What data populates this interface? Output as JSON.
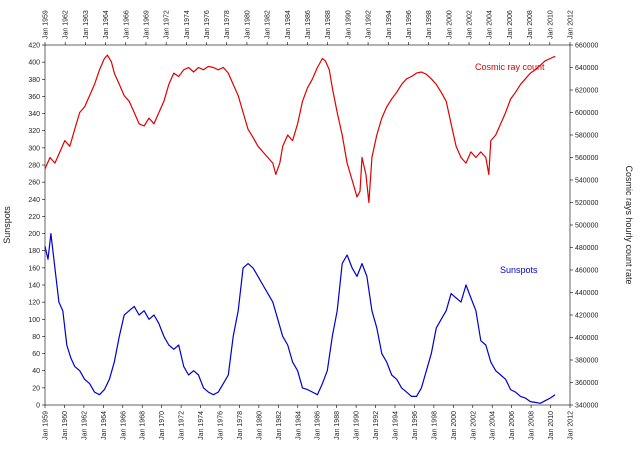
{
  "chart_data": {
    "type": "line",
    "title": "",
    "left_axis": {
      "label": "Sunspots",
      "range": [
        0,
        420
      ],
      "ticks": [
        "0",
        "20",
        "40",
        "60",
        "80",
        "100",
        "120",
        "140",
        "160",
        "180",
        "200",
        "220",
        "240",
        "260",
        "280",
        "300",
        "320",
        "340",
        "360",
        "380",
        "400",
        "420"
      ]
    },
    "right_axis": {
      "label": "Cosmic rays hourly count rate",
      "range": [
        340000,
        660000
      ],
      "ticks": [
        "340000",
        "360000",
        "380000",
        "400000",
        "420000",
        "440000",
        "460000",
        "480000",
        "500000",
        "520000",
        "540000",
        "560000",
        "580000",
        "600000",
        "620000",
        "640000",
        "660000"
      ]
    },
    "x_axis": {
      "range": [
        1959,
        2012
      ],
      "bottom_ticks": [
        "Jan 1959",
        "Jan 1960",
        "Jan 1962",
        "Jan 1964",
        "Jan 1966",
        "Jan 1968",
        "Jan 1970",
        "Jan 1972",
        "Jan 1974",
        "Jan 1976",
        "Jan 1978",
        "Jan 1980",
        "Jan 1982",
        "Jan 1984",
        "Jan 1986",
        "Jan 1988",
        "Jan 1990",
        "Jan 1992",
        "Jan 1994",
        "Jan 1996",
        "Jan 1998",
        "Jan 2000",
        "Jan 2002",
        "Jan 2004",
        "Jan 2006",
        "Jan 2008",
        "Jan 2010",
        "Jan 2012"
      ],
      "top_ticks": [
        "Jan 1959",
        "Jan 1962",
        "Jan 1963",
        "Jan 1964",
        "Jan 1966",
        "Jan 1969",
        "Jan 1972",
        "Jan 1974",
        "Jan 1976",
        "Jan 1978",
        "Jan 1980",
        "Jan 1982",
        "Jan 1984",
        "Jan 1986",
        "Jan 1988",
        "Jan 1990",
        "Jan 1992",
        "Jan 1994",
        "Jan 1996",
        "Jan 1998",
        "Jan 2000",
        "Jan 2002",
        "Jan 2004",
        "Jan 2006",
        "Jan 2008",
        "Jan 2010",
        "Jan 2012"
      ]
    },
    "series": [
      {
        "name": "Cosmic ray count",
        "axis": "right",
        "color": "#e00000",
        "points": [
          [
            1959.0,
            550000
          ],
          [
            1959.5,
            560000
          ],
          [
            1960.0,
            555000
          ],
          [
            1960.5,
            565000
          ],
          [
            1961.0,
            575000
          ],
          [
            1961.5,
            570000
          ],
          [
            1962.0,
            585000
          ],
          [
            1962.5,
            600000
          ],
          [
            1963.0,
            605000
          ],
          [
            1963.5,
            615000
          ],
          [
            1964.0,
            625000
          ],
          [
            1964.5,
            638000
          ],
          [
            1965.0,
            648000
          ],
          [
            1965.3,
            651000
          ],
          [
            1965.7,
            645000
          ],
          [
            1966.0,
            635000
          ],
          [
            1966.5,
            625000
          ],
          [
            1967.0,
            615000
          ],
          [
            1967.5,
            610000
          ],
          [
            1968.0,
            600000
          ],
          [
            1968.5,
            590000
          ],
          [
            1969.0,
            588000
          ],
          [
            1969.5,
            595000
          ],
          [
            1970.0,
            590000
          ],
          [
            1970.5,
            600000
          ],
          [
            1971.0,
            610000
          ],
          [
            1971.5,
            625000
          ],
          [
            1972.0,
            635000
          ],
          [
            1972.5,
            632000
          ],
          [
            1973.0,
            638000
          ],
          [
            1973.5,
            640000
          ],
          [
            1974.0,
            636000
          ],
          [
            1974.5,
            640000
          ],
          [
            1975.0,
            638000
          ],
          [
            1975.5,
            641000
          ],
          [
            1976.0,
            640000
          ],
          [
            1976.5,
            638000
          ],
          [
            1977.0,
            640000
          ],
          [
            1977.5,
            635000
          ],
          [
            1978.0,
            625000
          ],
          [
            1978.5,
            615000
          ],
          [
            1979.0,
            600000
          ],
          [
            1979.5,
            585000
          ],
          [
            1980.0,
            578000
          ],
          [
            1980.5,
            570000
          ],
          [
            1981.0,
            565000
          ],
          [
            1981.5,
            560000
          ],
          [
            1982.0,
            555000
          ],
          [
            1982.3,
            545000
          ],
          [
            1982.7,
            555000
          ],
          [
            1983.0,
            570000
          ],
          [
            1983.5,
            580000
          ],
          [
            1984.0,
            575000
          ],
          [
            1984.5,
            590000
          ],
          [
            1985.0,
            610000
          ],
          [
            1985.5,
            622000
          ],
          [
            1986.0,
            630000
          ],
          [
            1986.5,
            640000
          ],
          [
            1987.0,
            648000
          ],
          [
            1987.3,
            646000
          ],
          [
            1987.7,
            638000
          ],
          [
            1988.0,
            622000
          ],
          [
            1988.5,
            600000
          ],
          [
            1989.0,
            580000
          ],
          [
            1989.5,
            555000
          ],
          [
            1990.0,
            540000
          ],
          [
            1990.5,
            525000
          ],
          [
            1990.8,
            530000
          ],
          [
            1991.0,
            560000
          ],
          [
            1991.4,
            545000
          ],
          [
            1991.7,
            520000
          ],
          [
            1992.0,
            560000
          ],
          [
            1992.5,
            580000
          ],
          [
            1993.0,
            595000
          ],
          [
            1993.5,
            605000
          ],
          [
            1994.0,
            612000
          ],
          [
            1994.5,
            618000
          ],
          [
            1995.0,
            625000
          ],
          [
            1995.5,
            630000
          ],
          [
            1996.0,
            632000
          ],
          [
            1996.5,
            635000
          ],
          [
            1997.0,
            636000
          ],
          [
            1997.5,
            634000
          ],
          [
            1998.0,
            630000
          ],
          [
            1998.5,
            625000
          ],
          [
            1999.0,
            618000
          ],
          [
            1999.5,
            610000
          ],
          [
            2000.0,
            590000
          ],
          [
            2000.5,
            570000
          ],
          [
            2001.0,
            560000
          ],
          [
            2001.5,
            555000
          ],
          [
            2002.0,
            565000
          ],
          [
            2002.5,
            560000
          ],
          [
            2003.0,
            565000
          ],
          [
            2003.5,
            560000
          ],
          [
            2003.8,
            545000
          ],
          [
            2004.0,
            575000
          ],
          [
            2004.5,
            580000
          ],
          [
            2005.0,
            590000
          ],
          [
            2005.5,
            600000
          ],
          [
            2006.0,
            612000
          ],
          [
            2006.5,
            618000
          ],
          [
            2007.0,
            625000
          ],
          [
            2007.5,
            630000
          ],
          [
            2008.0,
            635000
          ],
          [
            2008.5,
            638000
          ],
          [
            2009.0,
            642000
          ],
          [
            2009.5,
            646000
          ],
          [
            2010.0,
            648000
          ],
          [
            2010.5,
            650000
          ]
        ]
      },
      {
        "name": "Sunspots",
        "axis": "left",
        "color": "#0000cc",
        "points": [
          [
            1959.0,
            185
          ],
          [
            1959.3,
            170
          ],
          [
            1959.6,
            200
          ],
          [
            1960.0,
            160
          ],
          [
            1960.4,
            120
          ],
          [
            1960.8,
            110
          ],
          [
            1961.2,
            70
          ],
          [
            1961.6,
            55
          ],
          [
            1962.0,
            45
          ],
          [
            1962.5,
            40
          ],
          [
            1963.0,
            30
          ],
          [
            1963.5,
            25
          ],
          [
            1964.0,
            15
          ],
          [
            1964.5,
            12
          ],
          [
            1965.0,
            18
          ],
          [
            1965.5,
            30
          ],
          [
            1966.0,
            50
          ],
          [
            1966.5,
            80
          ],
          [
            1967.0,
            105
          ],
          [
            1967.5,
            110
          ],
          [
            1968.0,
            115
          ],
          [
            1968.5,
            105
          ],
          [
            1969.0,
            110
          ],
          [
            1969.5,
            100
          ],
          [
            1970.0,
            105
          ],
          [
            1970.5,
            95
          ],
          [
            1971.0,
            80
          ],
          [
            1971.5,
            70
          ],
          [
            1972.0,
            65
          ],
          [
            1972.5,
            70
          ],
          [
            1973.0,
            45
          ],
          [
            1973.5,
            35
          ],
          [
            1974.0,
            40
          ],
          [
            1974.5,
            35
          ],
          [
            1975.0,
            20
          ],
          [
            1975.5,
            15
          ],
          [
            1976.0,
            12
          ],
          [
            1976.5,
            15
          ],
          [
            1977.0,
            25
          ],
          [
            1977.5,
            35
          ],
          [
            1978.0,
            80
          ],
          [
            1978.5,
            110
          ],
          [
            1979.0,
            160
          ],
          [
            1979.5,
            165
          ],
          [
            1980.0,
            160
          ],
          [
            1980.5,
            150
          ],
          [
            1981.0,
            140
          ],
          [
            1981.5,
            130
          ],
          [
            1982.0,
            120
          ],
          [
            1982.5,
            100
          ],
          [
            1983.0,
            80
          ],
          [
            1983.5,
            70
          ],
          [
            1984.0,
            50
          ],
          [
            1984.5,
            40
          ],
          [
            1985.0,
            20
          ],
          [
            1985.5,
            18
          ],
          [
            1986.0,
            15
          ],
          [
            1986.5,
            12
          ],
          [
            1987.0,
            25
          ],
          [
            1987.5,
            40
          ],
          [
            1988.0,
            80
          ],
          [
            1988.5,
            110
          ],
          [
            1989.0,
            165
          ],
          [
            1989.5,
            175
          ],
          [
            1990.0,
            160
          ],
          [
            1990.5,
            150
          ],
          [
            1991.0,
            165
          ],
          [
            1991.5,
            150
          ],
          [
            1992.0,
            110
          ],
          [
            1992.5,
            90
          ],
          [
            1993.0,
            60
          ],
          [
            1993.5,
            50
          ],
          [
            1994.0,
            35
          ],
          [
            1994.5,
            30
          ],
          [
            1995.0,
            20
          ],
          [
            1995.5,
            15
          ],
          [
            1996.0,
            10
          ],
          [
            1996.5,
            10
          ],
          [
            1997.0,
            20
          ],
          [
            1997.5,
            40
          ],
          [
            1998.0,
            60
          ],
          [
            1998.5,
            90
          ],
          [
            1999.0,
            100
          ],
          [
            1999.5,
            110
          ],
          [
            2000.0,
            130
          ],
          [
            2000.5,
            125
          ],
          [
            2001.0,
            120
          ],
          [
            2001.5,
            140
          ],
          [
            2002.0,
            125
          ],
          [
            2002.5,
            110
          ],
          [
            2003.0,
            75
          ],
          [
            2003.5,
            70
          ],
          [
            2004.0,
            50
          ],
          [
            2004.5,
            40
          ],
          [
            2005.0,
            35
          ],
          [
            2005.5,
            30
          ],
          [
            2006.0,
            18
          ],
          [
            2006.5,
            15
          ],
          [
            2007.0,
            10
          ],
          [
            2007.5,
            8
          ],
          [
            2008.0,
            4
          ],
          [
            2008.5,
            3
          ],
          [
            2009.0,
            2
          ],
          [
            2009.5,
            5
          ],
          [
            2010.0,
            8
          ],
          [
            2010.5,
            12
          ]
        ]
      }
    ]
  }
}
